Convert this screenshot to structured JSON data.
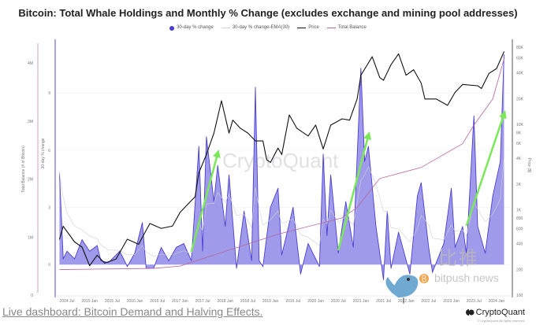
{
  "title": "Bitcoin: Total Whale Holdings and Monthly % Change (excludes exchange and mining pool addresses)",
  "legend": [
    {
      "label": "30-day % change",
      "color": "#4a3fd1"
    },
    {
      "label": "30-day % change-EMA(30)",
      "color": "#cfcfd6"
    },
    {
      "label": "Price",
      "color": "#111111"
    },
    {
      "label": "Total Balance",
      "color": "#b5659a"
    }
  ],
  "watermark": "CryptoQuant",
  "bitpush_watermark": {
    "cn": "比推",
    "en": "bitpush news"
  },
  "footer": {
    "link": "Live dashboard: Bitcoin Demand and Halving Effects.",
    "brand": "CryptoQuant",
    "copyright": "© CryptoQuant All rights reserved."
  },
  "chart_data": {
    "type": "area+line",
    "title": "Bitcoin: Total Whale Holdings and Monthly % Change (excludes exchange and mining pool addresses)",
    "grid": true,
    "legend_position": "top-center",
    "x_ticks": [
      "2014 Jul",
      "2015 Jan",
      "2015 Jul",
      "2016 Jan",
      "2016 Jul",
      "2017 Jan",
      "2017 Jul",
      "2018 Jan",
      "2018 Jul",
      "2019 Jan",
      "2019 Jul",
      "2020 Jan",
      "2020 Jul",
      "2021 Jan",
      "2021 Jul",
      "2022 Jan",
      "2022 Jul",
      "2023 Jan",
      "2023 Jul",
      "2024 Jan"
    ],
    "axes": {
      "total_balance": {
        "label": "Total Balance (# of Bitcoin)",
        "ticks": [
          "0",
          "1M",
          "2M",
          "3M",
          "4M"
        ],
        "tick_values": [
          0,
          1000000,
          2000000,
          3000000,
          4000000
        ],
        "range": [
          0,
          4340000
        ],
        "side": "left-outer"
      },
      "pct_change": {
        "label": "30-day % change",
        "ticks": [
          "0",
          "3",
          "6",
          "9"
        ],
        "tick_values": [
          0,
          3,
          6,
          9
        ],
        "range": [
          -1.6,
          11.6
        ],
        "side": "left-inner"
      },
      "price": {
        "label": "Price ($)",
        "scale": "log",
        "ticks": [
          "100",
          "200",
          "400",
          "600",
          "800",
          "1K",
          "2K",
          "4K",
          "6K",
          "8K",
          "10K",
          "20K",
          "40K",
          "60K",
          "80K"
        ],
        "tick_values": [
          100,
          200,
          400,
          600,
          800,
          1000,
          2000,
          4000,
          6000,
          8000,
          10000,
          20000,
          40000,
          60000,
          80000
        ],
        "range": [
          100,
          89000
        ],
        "side": "right"
      }
    },
    "series": [
      {
        "name": "30-day % change",
        "axis": "pct_change",
        "type": "area",
        "color": "#4a3fd1",
        "fill": "#8f88e6",
        "points": [
          [
            "2014-05",
            4.8
          ],
          [
            "2014-06",
            0.3
          ],
          [
            "2014-07",
            0.7
          ],
          [
            "2014-09",
            0.3
          ],
          [
            "2014-11",
            1.3
          ],
          [
            "2015-01",
            0.7
          ],
          [
            "2015-03",
            1.0
          ],
          [
            "2015-04",
            0.2
          ],
          [
            "2015-06",
            0.1
          ],
          [
            "2015-09",
            0.7
          ],
          [
            "2015-11",
            -0.1
          ],
          [
            "2016-01",
            0.6
          ],
          [
            "2016-03",
            2.2
          ],
          [
            "2016-04",
            -0.2
          ],
          [
            "2016-06",
            -0.2
          ],
          [
            "2016-08",
            0.9
          ],
          [
            "2016-10",
            0.2
          ],
          [
            "2016-12",
            0.9
          ],
          [
            "2017-02",
            1.1
          ],
          [
            "2017-04",
            0.2
          ],
          [
            "2017-06",
            6.2
          ],
          [
            "2017-07",
            0.7
          ],
          [
            "2017-08",
            6.7
          ],
          [
            "2017-10",
            3.3
          ],
          [
            "2017-11",
            5.2
          ],
          [
            "2018-01",
            2.0
          ],
          [
            "2018-02",
            4.7
          ],
          [
            "2018-04",
            -0.2
          ],
          [
            "2018-06",
            2.8
          ],
          [
            "2018-08",
            0.2
          ],
          [
            "2018-09",
            9.3
          ],
          [
            "2018-10",
            0.2
          ],
          [
            "2018-11",
            -0.1
          ],
          [
            "2019-01",
            3.0
          ],
          [
            "2019-03",
            4.0
          ],
          [
            "2019-04",
            0.5
          ],
          [
            "2019-07",
            3.0
          ],
          [
            "2019-09",
            -0.5
          ],
          [
            "2019-11",
            1.1
          ],
          [
            "2020-02",
            -0.1
          ],
          [
            "2020-03",
            5.8
          ],
          [
            "2020-04",
            1.5
          ],
          [
            "2020-05",
            4.7
          ],
          [
            "2020-07",
            0.6
          ],
          [
            "2020-09",
            3.3
          ],
          [
            "2020-11",
            0.9
          ],
          [
            "2021-01",
            10.3
          ],
          [
            "2021-02",
            5.4
          ],
          [
            "2021-03",
            6.2
          ],
          [
            "2021-05",
            2.0
          ],
          [
            "2021-07",
            -0.8
          ],
          [
            "2021-08",
            2.8
          ],
          [
            "2021-09",
            -0.2
          ],
          [
            "2021-11",
            1.7
          ],
          [
            "2022-02",
            -0.5
          ],
          [
            "2022-04",
            3.6
          ],
          [
            "2022-05",
            4.3
          ],
          [
            "2022-07",
            0.9
          ],
          [
            "2022-08",
            -0.4
          ],
          [
            "2022-11",
            1.1
          ],
          [
            "2023-01",
            4.0
          ],
          [
            "2023-02",
            0.9
          ],
          [
            "2023-04",
            2.0
          ],
          [
            "2023-05",
            0.6
          ],
          [
            "2023-07",
            7.8
          ],
          [
            "2023-08",
            2.0
          ],
          [
            "2023-10",
            0.6
          ],
          [
            "2023-12",
            3.6
          ],
          [
            "2024-02",
            5.4
          ],
          [
            "2024-03",
            11.0
          ]
        ]
      },
      {
        "name": "Price",
        "axis": "price",
        "type": "line",
        "color": "#111111",
        "points": [
          [
            "2014-05",
            450
          ],
          [
            "2014-06",
            640
          ],
          [
            "2014-09",
            420
          ],
          [
            "2014-11",
            364
          ],
          [
            "2015-01",
            221
          ],
          [
            "2015-03",
            293
          ],
          [
            "2015-05",
            237
          ],
          [
            "2015-08",
            264
          ],
          [
            "2015-11",
            451
          ],
          [
            "2016-02",
            394
          ],
          [
            "2016-05",
            690
          ],
          [
            "2016-08",
            604
          ],
          [
            "2016-11",
            644
          ],
          [
            "2017-01",
            930
          ],
          [
            "2017-03",
            1150
          ],
          [
            "2017-05",
            1420
          ],
          [
            "2017-06",
            2710
          ],
          [
            "2017-08",
            4430
          ],
          [
            "2017-10",
            7900
          ],
          [
            "2017-12",
            18900
          ],
          [
            "2018-02",
            7900
          ],
          [
            "2018-03",
            11200
          ],
          [
            "2018-05",
            9000
          ],
          [
            "2018-07",
            7900
          ],
          [
            "2018-09",
            6400
          ],
          [
            "2018-11",
            6400
          ],
          [
            "2018-12",
            3850
          ],
          [
            "2019-01",
            3580
          ],
          [
            "2019-03",
            5270
          ],
          [
            "2019-04",
            4430
          ],
          [
            "2019-06",
            12900
          ],
          [
            "2019-08",
            9000
          ],
          [
            "2019-11",
            7300
          ],
          [
            "2020-01",
            9800
          ],
          [
            "2020-03",
            5150
          ],
          [
            "2020-05",
            9800
          ],
          [
            "2020-08",
            11600
          ],
          [
            "2020-10",
            11200
          ],
          [
            "2020-12",
            19800
          ],
          [
            "2021-01",
            37600
          ],
          [
            "2021-04",
            62000
          ],
          [
            "2021-06",
            35400
          ],
          [
            "2021-07",
            32800
          ],
          [
            "2021-09",
            50000
          ],
          [
            "2021-11",
            67000
          ],
          [
            "2022-01",
            37600
          ],
          [
            "2022-03",
            43600
          ],
          [
            "2022-05",
            30400
          ],
          [
            "2022-06",
            19800
          ],
          [
            "2022-09",
            19800
          ],
          [
            "2022-12",
            16700
          ],
          [
            "2023-02",
            23700
          ],
          [
            "2023-04",
            29300
          ],
          [
            "2023-08",
            28300
          ],
          [
            "2023-09",
            26300
          ],
          [
            "2023-11",
            39500
          ],
          [
            "2024-01",
            45000
          ],
          [
            "2024-03",
            71000
          ]
        ]
      },
      {
        "name": "Total Balance",
        "axis": "total_balance",
        "type": "line",
        "color": "#b5659a",
        "points": [
          [
            "2014-05",
            440000
          ],
          [
            "2016-06",
            460000
          ],
          [
            "2017-01",
            500000
          ],
          [
            "2017-10",
            690000
          ],
          [
            "2019-03",
            1050000
          ],
          [
            "2020-08",
            1330000
          ],
          [
            "2020-12",
            1510000
          ],
          [
            "2021-06",
            2010000
          ],
          [
            "2022-05",
            2200000
          ],
          [
            "2023-04",
            2610000
          ],
          [
            "2023-07",
            2930000
          ],
          [
            "2023-12",
            3380000
          ],
          [
            "2024-03",
            4070000
          ]
        ]
      }
    ],
    "annotations": [
      {
        "type": "arrow",
        "color": "#7be85a",
        "from": "2017-04",
        "to": "2017-11"
      },
      {
        "type": "arrow",
        "color": "#7be85a",
        "from": "2020-07",
        "to": "2021-03"
      },
      {
        "type": "arrow",
        "color": "#7be85a",
        "from": "2023-05",
        "to": "2024-03"
      }
    ]
  }
}
